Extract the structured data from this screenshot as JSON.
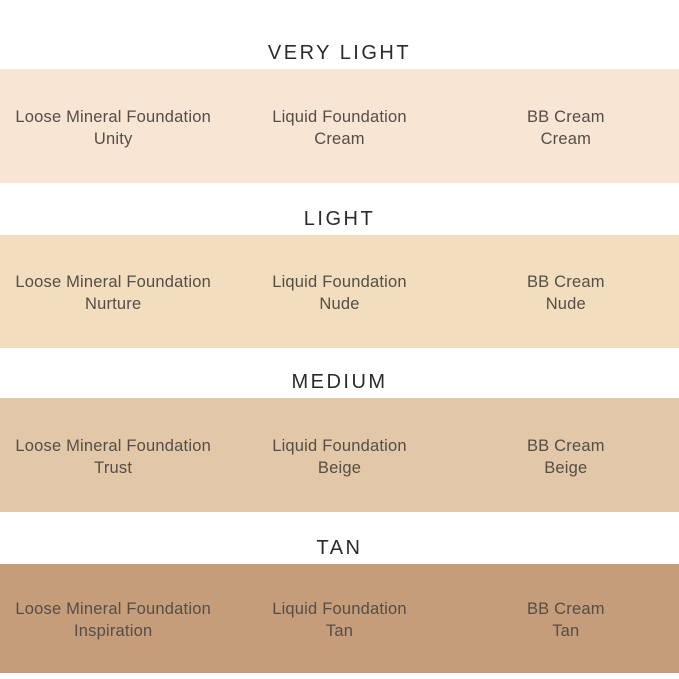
{
  "colors": {
    "background": "#ffffff",
    "heading_text": "#2b2b2b",
    "product_text": "#544e47"
  },
  "chart_data": {
    "type": "table",
    "description_of_layout": "foundation shade depth chart, 4 swatch rows x 3 product columns",
    "row_labels": [
      "VERY LIGHT",
      "LIGHT",
      "MEDIUM",
      "TAN"
    ],
    "column_products": [
      "Loose Mineral Foundation",
      "Liquid Foundation",
      "BB Cream"
    ],
    "rows": [
      {
        "label": "VERY LIGHT",
        "swatch_color": "#f9e5d4",
        "cells": [
          {
            "product": "Loose Mineral Foundation",
            "shade": "Unity"
          },
          {
            "product": "Liquid Foundation",
            "shade": "Cream"
          },
          {
            "product": "BB Cream",
            "shade": "Cream"
          }
        ]
      },
      {
        "label": "LIGHT",
        "swatch_color": "#f2debe",
        "cells": [
          {
            "product": "Loose Mineral Foundation",
            "shade": "Nurture"
          },
          {
            "product": "Liquid Foundation",
            "shade": "Nude"
          },
          {
            "product": "BB Cream",
            "shade": "Nude"
          }
        ]
      },
      {
        "label": "MEDIUM",
        "swatch_color": "#e2c8a8",
        "cells": [
          {
            "product": "Loose Mineral Foundation",
            "shade": "Trust"
          },
          {
            "product": "Liquid Foundation",
            "shade": "Beige"
          },
          {
            "product": "BB Cream",
            "shade": "Beige"
          }
        ]
      },
      {
        "label": "TAN",
        "swatch_color": "#c69d7a",
        "cells": [
          {
            "product": "Loose Mineral Foundation",
            "shade": "Inspiration"
          },
          {
            "product": "Liquid Foundation",
            "shade": "Tan"
          },
          {
            "product": "BB Cream",
            "shade": "Tan"
          }
        ]
      }
    ]
  }
}
